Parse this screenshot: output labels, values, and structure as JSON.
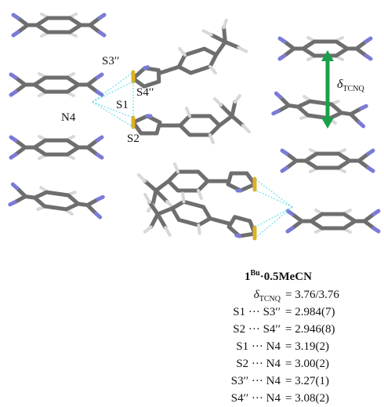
{
  "atom_labels": {
    "s3": "S3′′",
    "s4": "S4′′",
    "s1": "S1",
    "n4": "N4",
    "s2": "S2"
  },
  "delta_label": {
    "symbol": "δ",
    "subscript": "TCNQ"
  },
  "compound": {
    "number": "1",
    "superscript": "Bu",
    "suffix": "·0.5MeCN"
  },
  "measurements": [
    {
      "name": "δ",
      "subscript": "TCNQ",
      "value": "= 3.76/3.76"
    },
    {
      "name": "S1 ··· S3′′",
      "value": "= 2.984(7)"
    },
    {
      "name": "S2 ··· S4′′",
      "value": "= 2.946(8)"
    },
    {
      "name": "S1 ··· N4",
      "value": "= 3.19(2)"
    },
    {
      "name": "S2 ··· N4",
      "value": "= 3.00(2)"
    },
    {
      "name": "S3′′ ··· N4",
      "value": "= 3.27(1)"
    },
    {
      "name": "S4′′ ··· N4",
      "value": "= 3.08(2)"
    }
  ]
}
